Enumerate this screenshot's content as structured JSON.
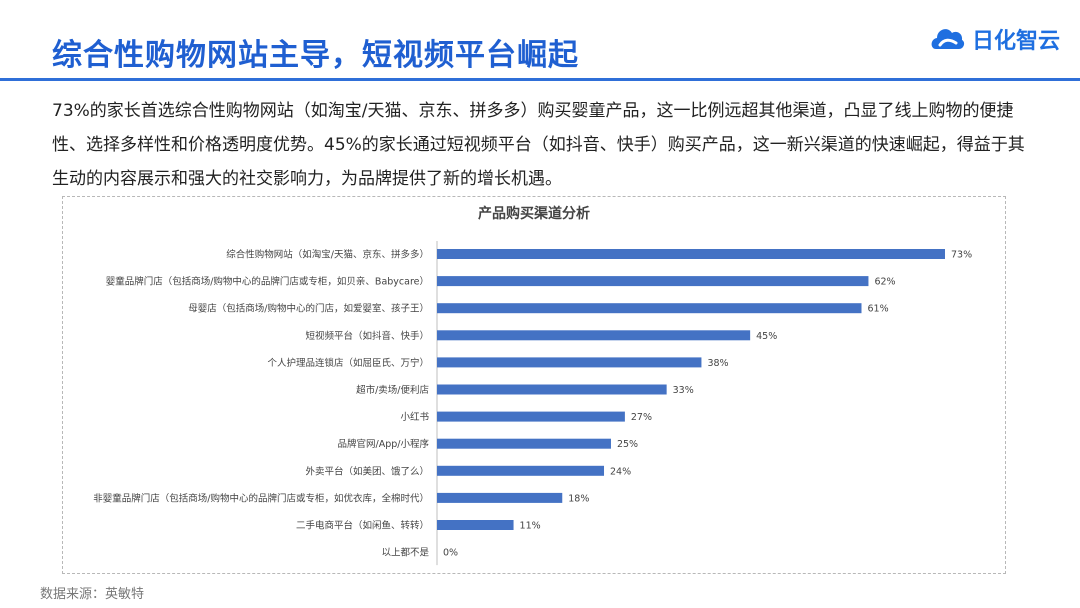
{
  "header": {
    "title": "综合性购物网站主导，短视频平台崛起",
    "logo_text": "日化智云"
  },
  "body": {
    "paragraph": "73%的家长首选综合性购物网站（如淘宝/天猫、京东、拼多多）购买婴童产品，这一比例远超其他渠道，凸显了线上购物的便捷性、选择多样性和价格透明度优势。45%的家长通过短视频平台（如抖音、快手）购买产品，这一新兴渠道的快速崛起，得益于其生动的内容展示和强大的社交影响力，为品牌提供了新的增长机遇。"
  },
  "footer": {
    "source": "数据来源：英敏特"
  },
  "colors": {
    "accent": "#1f5fd1",
    "bar": "#4472c4"
  },
  "chart_data": {
    "type": "bar",
    "orientation": "horizontal",
    "title": "产品购买渠道分析",
    "categories": [
      "综合性购物网站（如淘宝/天猫、京东、拼多多）",
      "婴童品牌门店（包括商场/购物中心的品牌门店或专柜，如贝亲、Babycare）",
      "母婴店（包括商场/购物中心的门店，如爱婴室、孩子王）",
      "短视频平台（如抖音、快手）",
      "个人护理品连锁店（如屈臣氏、万宁）",
      "超市/卖场/便利店",
      "小红书",
      "品牌官网/App/小程序",
      "外卖平台（如美团、饿了么）",
      "非婴童品牌门店（包括商场/购物中心的品牌门店或专柜，如优衣库，全棉时代）",
      "二手电商平台（如闲鱼、转转）",
      "以上都不是"
    ],
    "values": [
      73,
      62,
      61,
      45,
      38,
      33,
      27,
      25,
      24,
      18,
      11,
      0
    ],
    "value_labels": [
      "73%",
      "62%",
      "61%",
      "45%",
      "38%",
      "33%",
      "27%",
      "25%",
      "24%",
      "18%",
      "11%",
      "0%"
    ],
    "xlim": [
      0,
      73
    ],
    "grid": false,
    "legend": "none"
  }
}
